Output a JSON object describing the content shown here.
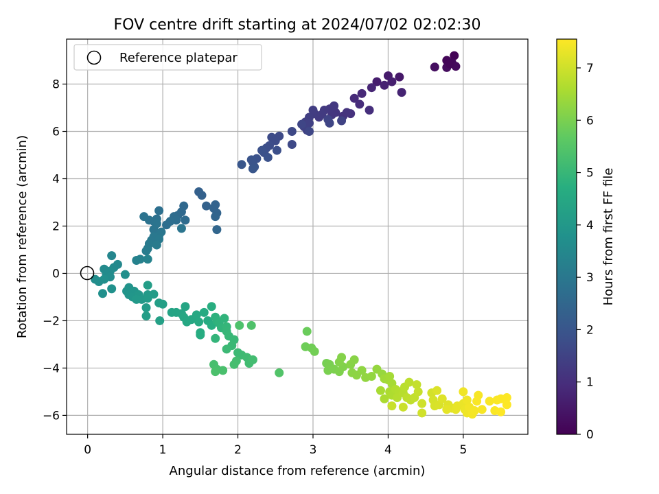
{
  "chart_data": {
    "type": "scatter",
    "title": "FOV centre drift starting at 2024/07/02 02:02:30",
    "xlabel": "Angular distance from reference (arcmin)",
    "ylabel": "Rotation from reference (arcmin)",
    "xlim": [
      -0.28,
      5.86
    ],
    "ylim": [
      -6.8,
      9.9
    ],
    "xticks": [
      0,
      1,
      2,
      3,
      4,
      5
    ],
    "yticks": [
      -6,
      -4,
      -2,
      0,
      2,
      4,
      6,
      8
    ],
    "grid": true,
    "legend": {
      "position": "top-left",
      "entries": [
        "Reference platepar"
      ]
    },
    "reference_marker": {
      "x": 0,
      "y": 0,
      "label": "Reference platepar"
    },
    "colorbar": {
      "label": "Hours from first FF file",
      "min": 0,
      "max": 7.55,
      "ticks": [
        0,
        1,
        2,
        3,
        4,
        5,
        6,
        7
      ],
      "colormap": "viridis"
    },
    "points": [
      [
        4.88,
        9.2,
        0.05
      ],
      [
        4.78,
        9.0,
        0.1
      ],
      [
        4.85,
        8.9,
        0.15
      ],
      [
        4.9,
        8.75,
        0.2
      ],
      [
        4.78,
        8.7,
        0.25
      ],
      [
        4.62,
        8.72,
        0.3
      ],
      [
        4.82,
        8.85,
        0.12
      ],
      [
        4.15,
        8.3,
        0.5
      ],
      [
        4.0,
        8.35,
        0.55
      ],
      [
        3.85,
        8.1,
        0.6
      ],
      [
        4.05,
        8.1,
        0.65
      ],
      [
        3.95,
        7.95,
        0.7
      ],
      [
        4.18,
        7.65,
        0.75
      ],
      [
        3.78,
        7.85,
        0.8
      ],
      [
        3.65,
        7.6,
        0.85
      ],
      [
        3.55,
        7.4,
        0.9
      ],
      [
        3.62,
        7.15,
        0.95
      ],
      [
        3.75,
        6.9,
        1.0
      ],
      [
        3.5,
        6.75,
        1.05
      ],
      [
        3.4,
        6.65,
        1.1
      ],
      [
        3.45,
        6.8,
        1.12
      ],
      [
        3.3,
        6.8,
        1.15
      ],
      [
        3.25,
        6.7,
        1.18
      ],
      [
        3.22,
        6.95,
        1.2
      ],
      [
        3.28,
        7.08,
        1.22
      ],
      [
        3.15,
        6.9,
        1.25
      ],
      [
        3.08,
        6.6,
        1.28
      ],
      [
        3.12,
        6.72,
        1.3
      ],
      [
        3.02,
        6.75,
        1.32
      ],
      [
        3.0,
        6.9,
        1.35
      ],
      [
        2.95,
        6.6,
        1.38
      ],
      [
        2.9,
        6.4,
        1.4
      ],
      [
        2.88,
        6.2,
        1.42
      ],
      [
        2.95,
        6.35,
        1.45
      ],
      [
        2.92,
        6.05,
        1.48
      ],
      [
        3.38,
        6.45,
        1.5
      ],
      [
        3.2,
        6.5,
        1.52
      ],
      [
        3.22,
        6.35,
        1.55
      ],
      [
        2.85,
        6.3,
        1.58
      ],
      [
        2.95,
        6.0,
        1.6
      ],
      [
        2.72,
        6.0,
        1.62
      ],
      [
        2.72,
        5.45,
        1.65
      ],
      [
        2.55,
        5.8,
        1.68
      ],
      [
        2.45,
        5.75,
        1.7
      ],
      [
        2.5,
        5.6,
        1.72
      ],
      [
        2.42,
        5.4,
        1.75
      ],
      [
        2.38,
        5.3,
        1.78
      ],
      [
        2.52,
        5.2,
        1.8
      ],
      [
        2.35,
        5.1,
        1.82
      ],
      [
        2.32,
        5.2,
        1.85
      ],
      [
        2.4,
        4.9,
        1.88
      ],
      [
        2.25,
        4.85,
        1.9
      ],
      [
        2.2,
        4.7,
        1.92
      ],
      [
        2.18,
        4.8,
        1.95
      ],
      [
        2.22,
        4.5,
        1.97
      ],
      [
        2.2,
        4.42,
        2.0
      ],
      [
        2.05,
        4.6,
        2.02
      ],
      [
        1.48,
        3.45,
        2.3
      ],
      [
        1.52,
        3.3,
        2.32
      ],
      [
        1.58,
        2.85,
        2.35
      ],
      [
        1.7,
        2.9,
        2.38
      ],
      [
        1.68,
        2.75,
        2.4
      ],
      [
        1.72,
        2.55,
        2.42
      ],
      [
        1.7,
        2.4,
        2.45
      ],
      [
        1.72,
        1.85,
        2.48
      ],
      [
        1.28,
        2.85,
        2.55
      ],
      [
        1.25,
        2.6,
        2.58
      ],
      [
        1.2,
        2.45,
        2.6
      ],
      [
        1.3,
        2.25,
        2.62
      ],
      [
        1.15,
        2.4,
        2.65
      ],
      [
        1.18,
        2.25,
        2.68
      ],
      [
        1.05,
        2.05,
        2.7
      ],
      [
        1.1,
        2.2,
        2.72
      ],
      [
        0.95,
        2.65,
        2.75
      ],
      [
        0.92,
        2.3,
        2.78
      ],
      [
        0.88,
        2.2,
        2.8
      ],
      [
        0.82,
        2.25,
        2.82
      ],
      [
        0.75,
        2.4,
        2.85
      ],
      [
        0.92,
        2.1,
        2.88
      ],
      [
        0.88,
        1.85,
        2.9
      ],
      [
        1.25,
        1.9,
        2.92
      ],
      [
        0.98,
        1.75,
        2.95
      ],
      [
        0.95,
        1.6,
        2.98
      ],
      [
        0.88,
        1.55,
        3.0
      ],
      [
        0.85,
        1.4,
        3.02
      ],
      [
        0.95,
        1.45,
        3.05
      ],
      [
        0.82,
        1.25,
        3.08
      ],
      [
        0.92,
        1.2,
        3.1
      ],
      [
        0.8,
        1.05,
        3.12
      ],
      [
        0.78,
        0.95,
        3.15
      ],
      [
        0.7,
        0.6,
        3.3
      ],
      [
        0.65,
        0.55,
        3.32
      ],
      [
        0.8,
        0.6,
        3.35
      ],
      [
        0.32,
        0.75,
        3.45
      ],
      [
        0.4,
        0.38,
        3.5
      ],
      [
        0.35,
        0.25,
        3.52
      ],
      [
        0.22,
        0.18,
        3.55
      ],
      [
        0.3,
        0.1,
        3.58
      ],
      [
        0.25,
        -0.05,
        3.6
      ],
      [
        0.3,
        -0.15,
        3.62
      ],
      [
        0.1,
        -0.25,
        3.65
      ],
      [
        0.15,
        -0.35,
        3.68
      ],
      [
        0.22,
        -0.25,
        3.7
      ],
      [
        0.5,
        -0.05,
        3.72
      ],
      [
        0.2,
        -0.85,
        3.75
      ],
      [
        0.32,
        -0.65,
        3.78
      ],
      [
        0.55,
        -0.6,
        3.85
      ],
      [
        0.52,
        -0.75,
        3.88
      ],
      [
        0.62,
        -0.75,
        3.9
      ],
      [
        0.55,
        -0.9,
        3.92
      ],
      [
        0.6,
        -1.0,
        3.95
      ],
      [
        0.68,
        -0.9,
        3.98
      ],
      [
        0.72,
        -1.1,
        4.0
      ],
      [
        0.65,
        -1.1,
        4.02
      ],
      [
        0.8,
        -0.9,
        4.05
      ],
      [
        0.8,
        -1.05,
        4.08
      ],
      [
        0.78,
        -1.45,
        4.1
      ],
      [
        0.88,
        -0.88,
        4.12
      ],
      [
        0.8,
        -0.5,
        4.15
      ],
      [
        0.78,
        -1.8,
        4.18
      ],
      [
        0.95,
        -1.25,
        4.2
      ],
      [
        1.0,
        -1.3,
        4.22
      ],
      [
        0.96,
        -2.0,
        4.25
      ],
      [
        1.12,
        -1.65,
        4.35
      ],
      [
        1.18,
        -1.65,
        4.38
      ],
      [
        1.25,
        -1.7,
        4.4
      ],
      [
        1.3,
        -1.4,
        4.42
      ],
      [
        1.28,
        -1.85,
        4.45
      ],
      [
        1.32,
        -2.05,
        4.48
      ],
      [
        1.38,
        -1.95,
        4.5
      ],
      [
        1.45,
        -1.75,
        4.52
      ],
      [
        1.48,
        -2.05,
        4.55
      ],
      [
        1.55,
        -1.65,
        4.58
      ],
      [
        1.6,
        -2.0,
        4.6
      ],
      [
        1.5,
        -2.5,
        4.62
      ],
      [
        1.5,
        -2.6,
        4.65
      ],
      [
        1.65,
        -1.4,
        4.68
      ],
      [
        1.65,
        -2.2,
        4.7
      ],
      [
        1.7,
        -1.85,
        4.8
      ],
      [
        1.72,
        -2.0,
        4.82
      ],
      [
        1.75,
        -2.1,
        4.85
      ],
      [
        1.82,
        -1.9,
        4.88
      ],
      [
        1.78,
        -2.3,
        4.9
      ],
      [
        1.7,
        -2.75,
        4.92
      ],
      [
        1.85,
        -2.25,
        4.95
      ],
      [
        1.85,
        -2.45,
        4.98
      ],
      [
        1.88,
        -2.65,
        5.0
      ],
      [
        1.95,
        -2.8,
        5.02
      ],
      [
        1.92,
        -3.05,
        5.05
      ],
      [
        1.85,
        -3.2,
        5.08
      ],
      [
        2.0,
        -3.35,
        5.1
      ],
      [
        2.05,
        -3.45,
        5.12
      ],
      [
        2.12,
        -3.55,
        5.15
      ],
      [
        2.15,
        -3.8,
        5.18
      ],
      [
        2.2,
        -3.65,
        5.2
      ],
      [
        1.98,
        -3.7,
        5.22
      ],
      [
        1.95,
        -3.85,
        5.25
      ],
      [
        1.68,
        -3.85,
        5.28
      ],
      [
        1.72,
        -4.05,
        5.3
      ],
      [
        1.8,
        -4.1,
        5.32
      ],
      [
        1.7,
        -4.15,
        5.35
      ],
      [
        2.02,
        -2.2,
        5.38
      ],
      [
        2.18,
        -2.2,
        5.4
      ],
      [
        2.55,
        -4.2,
        5.45
      ],
      [
        2.92,
        -2.45,
        5.8
      ],
      [
        2.9,
        -3.1,
        5.85
      ],
      [
        2.98,
        -3.15,
        5.88
      ],
      [
        3.02,
        -3.3,
        5.9
      ],
      [
        3.18,
        -3.8,
        5.95
      ],
      [
        3.22,
        -3.85,
        5.98
      ],
      [
        3.2,
        -4.1,
        6.0
      ],
      [
        3.28,
        -4.05,
        6.02
      ],
      [
        3.35,
        -4.15,
        6.05
      ],
      [
        3.4,
        -3.95,
        6.08
      ],
      [
        3.35,
        -3.75,
        6.1
      ],
      [
        3.38,
        -3.55,
        6.12
      ],
      [
        3.5,
        -3.85,
        6.15
      ],
      [
        3.55,
        -3.65,
        6.18
      ],
      [
        3.52,
        -4.2,
        6.2
      ],
      [
        3.58,
        -4.3,
        6.22
      ],
      [
        3.65,
        -4.1,
        6.25
      ],
      [
        3.7,
        -4.4,
        6.28
      ],
      [
        3.78,
        -4.35,
        6.3
      ],
      [
        3.85,
        -4.05,
        6.32
      ],
      [
        3.92,
        -4.25,
        6.35
      ],
      [
        3.95,
        -4.45,
        6.45
      ],
      [
        4.0,
        -4.5,
        6.48
      ],
      [
        4.02,
        -4.35,
        6.5
      ],
      [
        4.05,
        -4.65,
        6.52
      ],
      [
        3.9,
        -4.95,
        6.55
      ],
      [
        3.95,
        -5.3,
        6.58
      ],
      [
        4.02,
        -5.0,
        6.6
      ],
      [
        4.05,
        -5.15,
        6.62
      ],
      [
        4.1,
        -4.9,
        6.65
      ],
      [
        4.15,
        -5.0,
        6.68
      ],
      [
        4.12,
        -5.25,
        6.7
      ],
      [
        4.2,
        -5.05,
        6.72
      ],
      [
        4.22,
        -4.8,
        6.75
      ],
      [
        4.28,
        -4.6,
        6.78
      ],
      [
        4.25,
        -5.25,
        6.8
      ],
      [
        4.3,
        -5.35,
        6.82
      ],
      [
        4.35,
        -5.25,
        6.85
      ],
      [
        4.38,
        -4.7,
        6.88
      ],
      [
        4.4,
        -5.0,
        6.9
      ],
      [
        4.05,
        -5.6,
        6.92
      ],
      [
        4.2,
        -5.65,
        6.95
      ],
      [
        4.45,
        -5.5,
        7.0
      ],
      [
        4.45,
        -5.9,
        7.02
      ],
      [
        4.58,
        -5.05,
        7.05
      ],
      [
        4.6,
        -5.35,
        7.08
      ],
      [
        4.62,
        -5.6,
        7.1
      ],
      [
        4.68,
        -5.55,
        7.12
      ],
      [
        4.65,
        -4.95,
        7.15
      ],
      [
        4.72,
        -5.3,
        7.18
      ],
      [
        4.8,
        -5.55,
        7.2
      ],
      [
        4.85,
        -5.7,
        7.22
      ],
      [
        4.78,
        -5.75,
        7.25
      ],
      [
        4.9,
        -5.75,
        7.28
      ],
      [
        4.92,
        -5.6,
        7.3
      ],
      [
        5.0,
        -5.5,
        7.32
      ],
      [
        5.02,
        -5.75,
        7.35
      ],
      [
        5.05,
        -5.9,
        7.38
      ],
      [
        5.0,
        -5.0,
        7.4
      ],
      [
        5.08,
        -5.65,
        7.42
      ],
      [
        5.12,
        -5.95,
        7.44
      ],
      [
        5.15,
        -5.8,
        7.46
      ],
      [
        5.2,
        -5.15,
        7.48
      ],
      [
        5.18,
        -5.4,
        7.5
      ],
      [
        5.35,
        -5.4,
        7.5
      ],
      [
        5.42,
        -5.8,
        7.52
      ],
      [
        5.45,
        -5.35,
        7.52
      ],
      [
        5.5,
        -5.3,
        7.53
      ],
      [
        5.58,
        -5.25,
        7.54
      ],
      [
        5.58,
        -5.55,
        7.55
      ],
      [
        5.5,
        -5.85,
        7.55
      ],
      [
        5.25,
        -5.75,
        7.48
      ],
      [
        5.05,
        -5.35,
        7.4
      ]
    ]
  }
}
